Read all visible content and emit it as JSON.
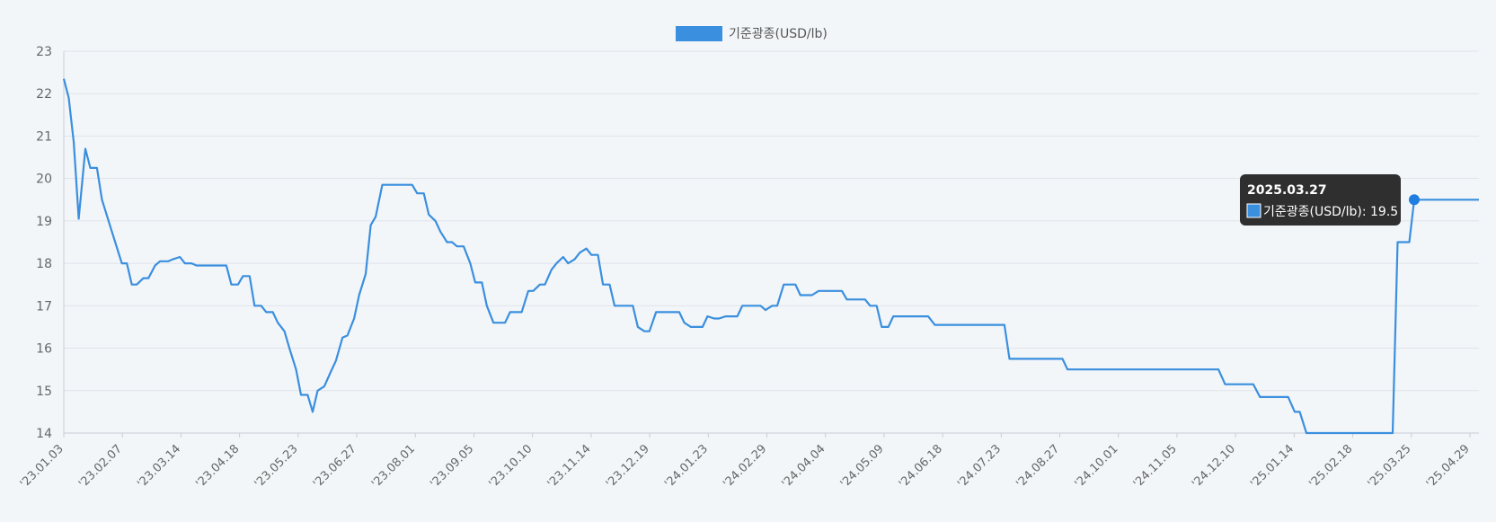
{
  "chart_data": {
    "type": "line",
    "legend": {
      "label": "기준광종(USD/lb)",
      "color": "#3a8fde",
      "placement": "top-center"
    },
    "ylim": [
      14,
      23
    ],
    "yticks": [
      14,
      15,
      16,
      17,
      18,
      19,
      20,
      21,
      22,
      23
    ],
    "grid": true,
    "x_tick_labels": [
      "'23.01.03",
      "'23.02.07",
      "'23.03.14",
      "'23.04.18",
      "'23.05.23",
      "'23.06.27",
      "'23.08.01",
      "'23.09.05",
      "'23.10.10",
      "'23.11.14",
      "'23.12.19",
      "'24.01.23",
      "'24.02.29",
      "'24.04.04",
      "'24.05.09",
      "'24.06.18",
      "'24.07.23",
      "'24.08.27",
      "'24.10.01",
      "'24.11.05",
      "'24.12.10",
      "'25.01.14",
      "'25.02.18",
      "'25.03.25",
      "'25.04.29"
    ],
    "series": [
      {
        "name": "기준광종(USD/lb)",
        "color": "#3a8fde",
        "points": [
          [
            "2023-01-03",
            22.35
          ],
          [
            "2023-01-06",
            21.9
          ],
          [
            "2023-01-09",
            20.85
          ],
          [
            "2023-01-12",
            19.05
          ],
          [
            "2023-01-16",
            20.7
          ],
          [
            "2023-01-19",
            20.25
          ],
          [
            "2023-01-23",
            20.25
          ],
          [
            "2023-01-26",
            19.5
          ],
          [
            "2023-02-01",
            18.75
          ],
          [
            "2023-02-07",
            18.0
          ],
          [
            "2023-02-10",
            18.0
          ],
          [
            "2023-02-13",
            17.5
          ],
          [
            "2023-02-16",
            17.5
          ],
          [
            "2023-02-20",
            17.65
          ],
          [
            "2023-02-23",
            17.65
          ],
          [
            "2023-02-27",
            17.95
          ],
          [
            "2023-03-02",
            18.05
          ],
          [
            "2023-03-07",
            18.05
          ],
          [
            "2023-03-10",
            18.1
          ],
          [
            "2023-03-14",
            18.15
          ],
          [
            "2023-03-17",
            18.0
          ],
          [
            "2023-03-21",
            18.0
          ],
          [
            "2023-03-24",
            17.95
          ],
          [
            "2023-04-11",
            17.95
          ],
          [
            "2023-04-14",
            17.5
          ],
          [
            "2023-04-18",
            17.5
          ],
          [
            "2023-04-21",
            17.7
          ],
          [
            "2023-04-25",
            17.7
          ],
          [
            "2023-04-28",
            17.0
          ],
          [
            "2023-05-02",
            17.0
          ],
          [
            "2023-05-05",
            16.85
          ],
          [
            "2023-05-09",
            16.85
          ],
          [
            "2023-05-12",
            16.6
          ],
          [
            "2023-05-16",
            16.4
          ],
          [
            "2023-05-19",
            16.0
          ],
          [
            "2023-05-23",
            15.5
          ],
          [
            "2023-05-26",
            14.9
          ],
          [
            "2023-05-30",
            14.9
          ],
          [
            "2023-06-02",
            14.5
          ],
          [
            "2023-06-05",
            15.0
          ],
          [
            "2023-06-09",
            15.1
          ],
          [
            "2023-06-13",
            15.45
          ],
          [
            "2023-06-16",
            15.7
          ],
          [
            "2023-06-20",
            16.25
          ],
          [
            "2023-06-23",
            16.3
          ],
          [
            "2023-06-27",
            16.7
          ],
          [
            "2023-06-30",
            17.25
          ],
          [
            "2023-07-04",
            17.75
          ],
          [
            "2023-07-07",
            18.9
          ],
          [
            "2023-07-10",
            19.1
          ],
          [
            "2023-07-14",
            19.85
          ],
          [
            "2023-08-01",
            19.85
          ],
          [
            "2023-08-04",
            19.65
          ],
          [
            "2023-08-08",
            19.65
          ],
          [
            "2023-08-11",
            19.15
          ],
          [
            "2023-08-15",
            19.0
          ],
          [
            "2023-08-18",
            18.75
          ],
          [
            "2023-08-22",
            18.5
          ],
          [
            "2023-08-25",
            18.5
          ],
          [
            "2023-08-28",
            18.4
          ],
          [
            "2023-09-01",
            18.4
          ],
          [
            "2023-09-05",
            18.0
          ],
          [
            "2023-09-08",
            17.55
          ],
          [
            "2023-09-12",
            17.55
          ],
          [
            "2023-09-15",
            17.0
          ],
          [
            "2023-09-19",
            16.6
          ],
          [
            "2023-09-26",
            16.6
          ],
          [
            "2023-09-29",
            16.85
          ],
          [
            "2023-10-06",
            16.85
          ],
          [
            "2023-10-10",
            17.35
          ],
          [
            "2023-10-13",
            17.35
          ],
          [
            "2023-10-17",
            17.5
          ],
          [
            "2023-10-20",
            17.5
          ],
          [
            "2023-10-24",
            17.85
          ],
          [
            "2023-10-27",
            18.0
          ],
          [
            "2023-10-31",
            18.15
          ],
          [
            "2023-11-03",
            18.0
          ],
          [
            "2023-11-07",
            18.1
          ],
          [
            "2023-11-10",
            18.25
          ],
          [
            "2023-11-14",
            18.35
          ],
          [
            "2023-11-17",
            18.2
          ],
          [
            "2023-11-21",
            18.2
          ],
          [
            "2023-11-24",
            17.5
          ],
          [
            "2023-11-28",
            17.5
          ],
          [
            "2023-12-01",
            17.0
          ],
          [
            "2023-12-12",
            17.0
          ],
          [
            "2023-12-15",
            16.5
          ],
          [
            "2023-12-19",
            16.4
          ],
          [
            "2023-12-22",
            16.4
          ],
          [
            "2023-12-26",
            16.85
          ],
          [
            "2024-01-09",
            16.85
          ],
          [
            "2024-01-12",
            16.6
          ],
          [
            "2024-01-16",
            16.5
          ],
          [
            "2024-01-23",
            16.5
          ],
          [
            "2024-01-26",
            16.75
          ],
          [
            "2024-01-30",
            16.7
          ],
          [
            "2024-02-02",
            16.7
          ],
          [
            "2024-02-06",
            16.75
          ],
          [
            "2024-02-13",
            16.75
          ],
          [
            "2024-02-16",
            17.0
          ],
          [
            "2024-02-27",
            17.0
          ],
          [
            "2024-03-01",
            16.9
          ],
          [
            "2024-03-05",
            17.0
          ],
          [
            "2024-03-08",
            17.0
          ],
          [
            "2024-03-12",
            17.5
          ],
          [
            "2024-03-19",
            17.5
          ],
          [
            "2024-03-22",
            17.25
          ],
          [
            "2024-03-29",
            17.25
          ],
          [
            "2024-04-02",
            17.35
          ],
          [
            "2024-04-16",
            17.35
          ],
          [
            "2024-04-19",
            17.15
          ],
          [
            "2024-04-30",
            17.15
          ],
          [
            "2024-05-03",
            17.0
          ],
          [
            "2024-05-07",
            17.0
          ],
          [
            "2024-05-10",
            16.5
          ],
          [
            "2024-05-14",
            16.5
          ],
          [
            "2024-05-17",
            16.75
          ],
          [
            "2024-06-07",
            16.75
          ],
          [
            "2024-06-11",
            16.55
          ],
          [
            "2024-07-23",
            16.55
          ],
          [
            "2024-07-26",
            15.75
          ],
          [
            "2024-08-27",
            15.75
          ],
          [
            "2024-08-30",
            15.5
          ],
          [
            "2024-11-29",
            15.5
          ],
          [
            "2024-12-03",
            15.15
          ],
          [
            "2024-12-20",
            15.15
          ],
          [
            "2024-12-24",
            14.85
          ],
          [
            "2025-01-10",
            14.85
          ],
          [
            "2025-01-14",
            14.5
          ],
          [
            "2025-01-17",
            14.5
          ],
          [
            "2025-01-21",
            14.0
          ],
          [
            "2025-03-14",
            14.0
          ],
          [
            "2025-03-17",
            18.5
          ],
          [
            "2025-03-24",
            18.5
          ],
          [
            "2025-03-27",
            19.5
          ],
          [
            "2025-05-05",
            19.5
          ]
        ]
      }
    ]
  },
  "tooltip": {
    "date": "2025.03.27",
    "label": "기준광종(USD/lb): 19.5",
    "x": "2025-03-27",
    "y": 19.5
  }
}
